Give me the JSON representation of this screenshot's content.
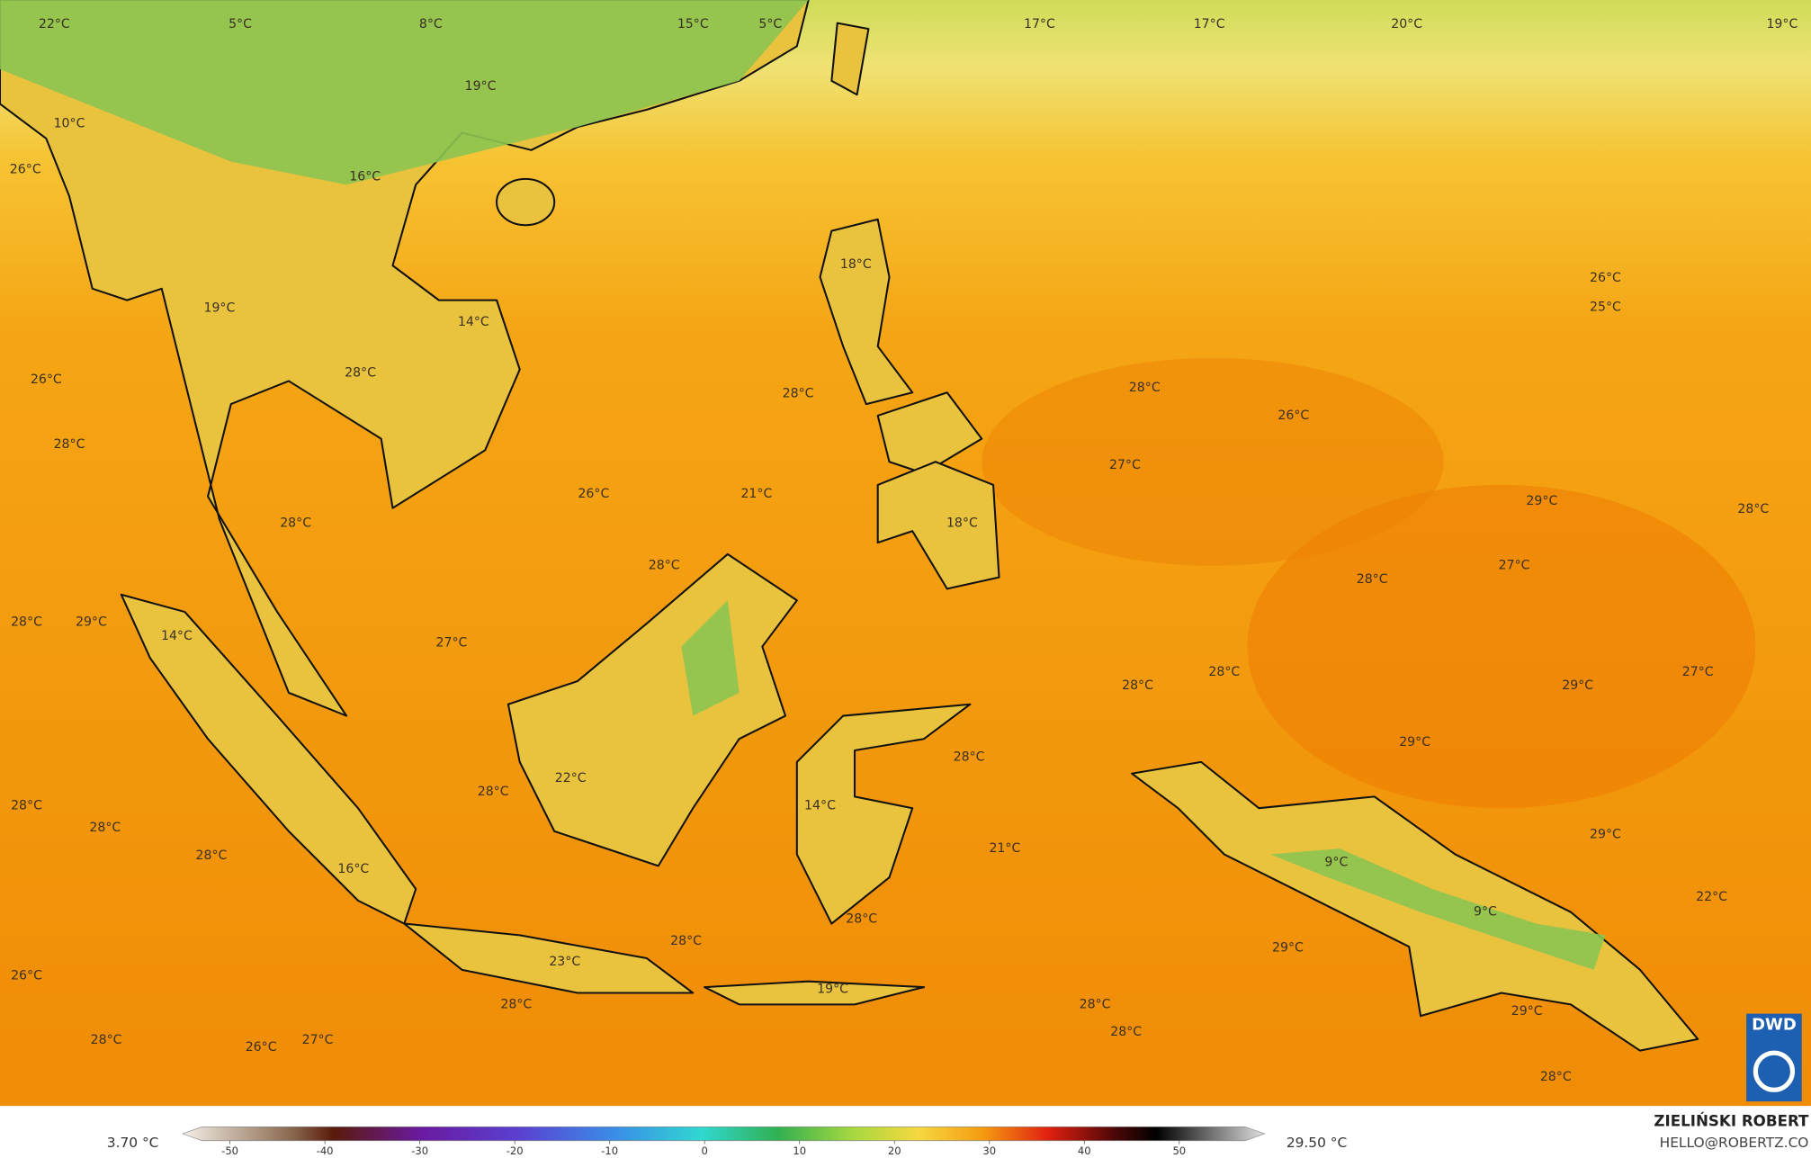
{
  "labels": [
    "22°C",
    "5°C",
    "8°C",
    "15°C",
    "5°C",
    "17°C",
    "17°C",
    "20°C",
    "19°C",
    "19°C",
    "10°C",
    "26°C",
    "16°C",
    "18°C",
    "26°C",
    "25°C",
    "19°C",
    "14°C",
    "26°C",
    "28°C",
    "28°C",
    "28°C",
    "26°C",
    "28°C",
    "27°C",
    "26°C",
    "21°C",
    "29°C",
    "28°C",
    "28°C",
    "18°C",
    "28°C",
    "27°C",
    "28°C",
    "28°C",
    "29°C",
    "14°C",
    "27°C",
    "28°C",
    "28°C",
    "29°C",
    "27°C",
    "29°C",
    "28°C",
    "22°C",
    "28°C",
    "14°C",
    "28°C",
    "28°C",
    "29°C",
    "28°C",
    "21°C",
    "16°C",
    "9°C",
    "22°C",
    "9°C",
    "28°C",
    "28°C",
    "29°C",
    "23°C",
    "26°C",
    "19°C",
    "28°C",
    "28°C",
    "29°C",
    "28°C",
    "28°C",
    "27°C",
    "26°C",
    "28°C"
  ],
  "legend": {
    "min_label": "3.70 °C",
    "max_label": "29.50 °C",
    "ticks": [
      -50,
      -40,
      -30,
      -20,
      -10,
      0,
      10,
      20,
      30,
      40,
      50
    ],
    "lim": [
      -55,
      59
    ]
  },
  "credit": {
    "name": "ZIELIŃSKI ROBERT",
    "email": "HELLO@ROBERTZ.CO"
  },
  "logo": "DWD"
}
